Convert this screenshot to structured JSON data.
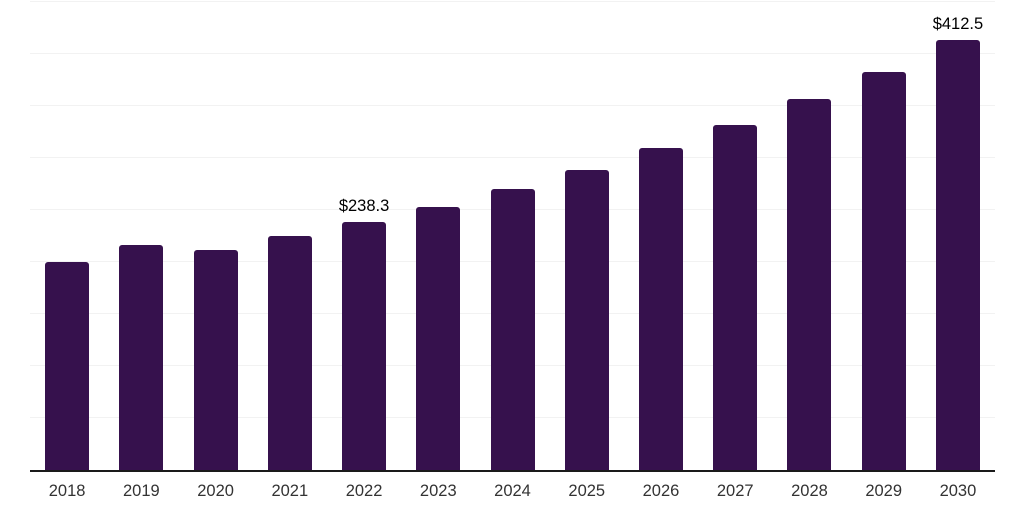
{
  "chart_data": {
    "type": "bar",
    "title": "",
    "xlabel": "",
    "ylabel": "",
    "categories": [
      "2018",
      "2019",
      "2020",
      "2021",
      "2022",
      "2023",
      "2024",
      "2025",
      "2026",
      "2027",
      "2028",
      "2029",
      "2030"
    ],
    "values": [
      199.4,
      216.1,
      211.3,
      224.2,
      238.3,
      252.4,
      270.1,
      288.3,
      308.5,
      330.9,
      355.6,
      381.5,
      412.5
    ],
    "data_labels": {
      "2022": "$238.3",
      "2030": "$412.5"
    },
    "labeled_categories": [
      "2022",
      "2030"
    ],
    "value_prefix": "$",
    "ylim": [
      0,
      450
    ],
    "gridline_step": 50,
    "grid": "horizontal-only",
    "legend": "none",
    "colors": {
      "bar": "#36114d",
      "gridline": "#f2f2f2",
      "axis_line": "#1a1a1a",
      "tick_label": "#333333",
      "data_label": "#000000",
      "background": "#ffffff"
    }
  }
}
